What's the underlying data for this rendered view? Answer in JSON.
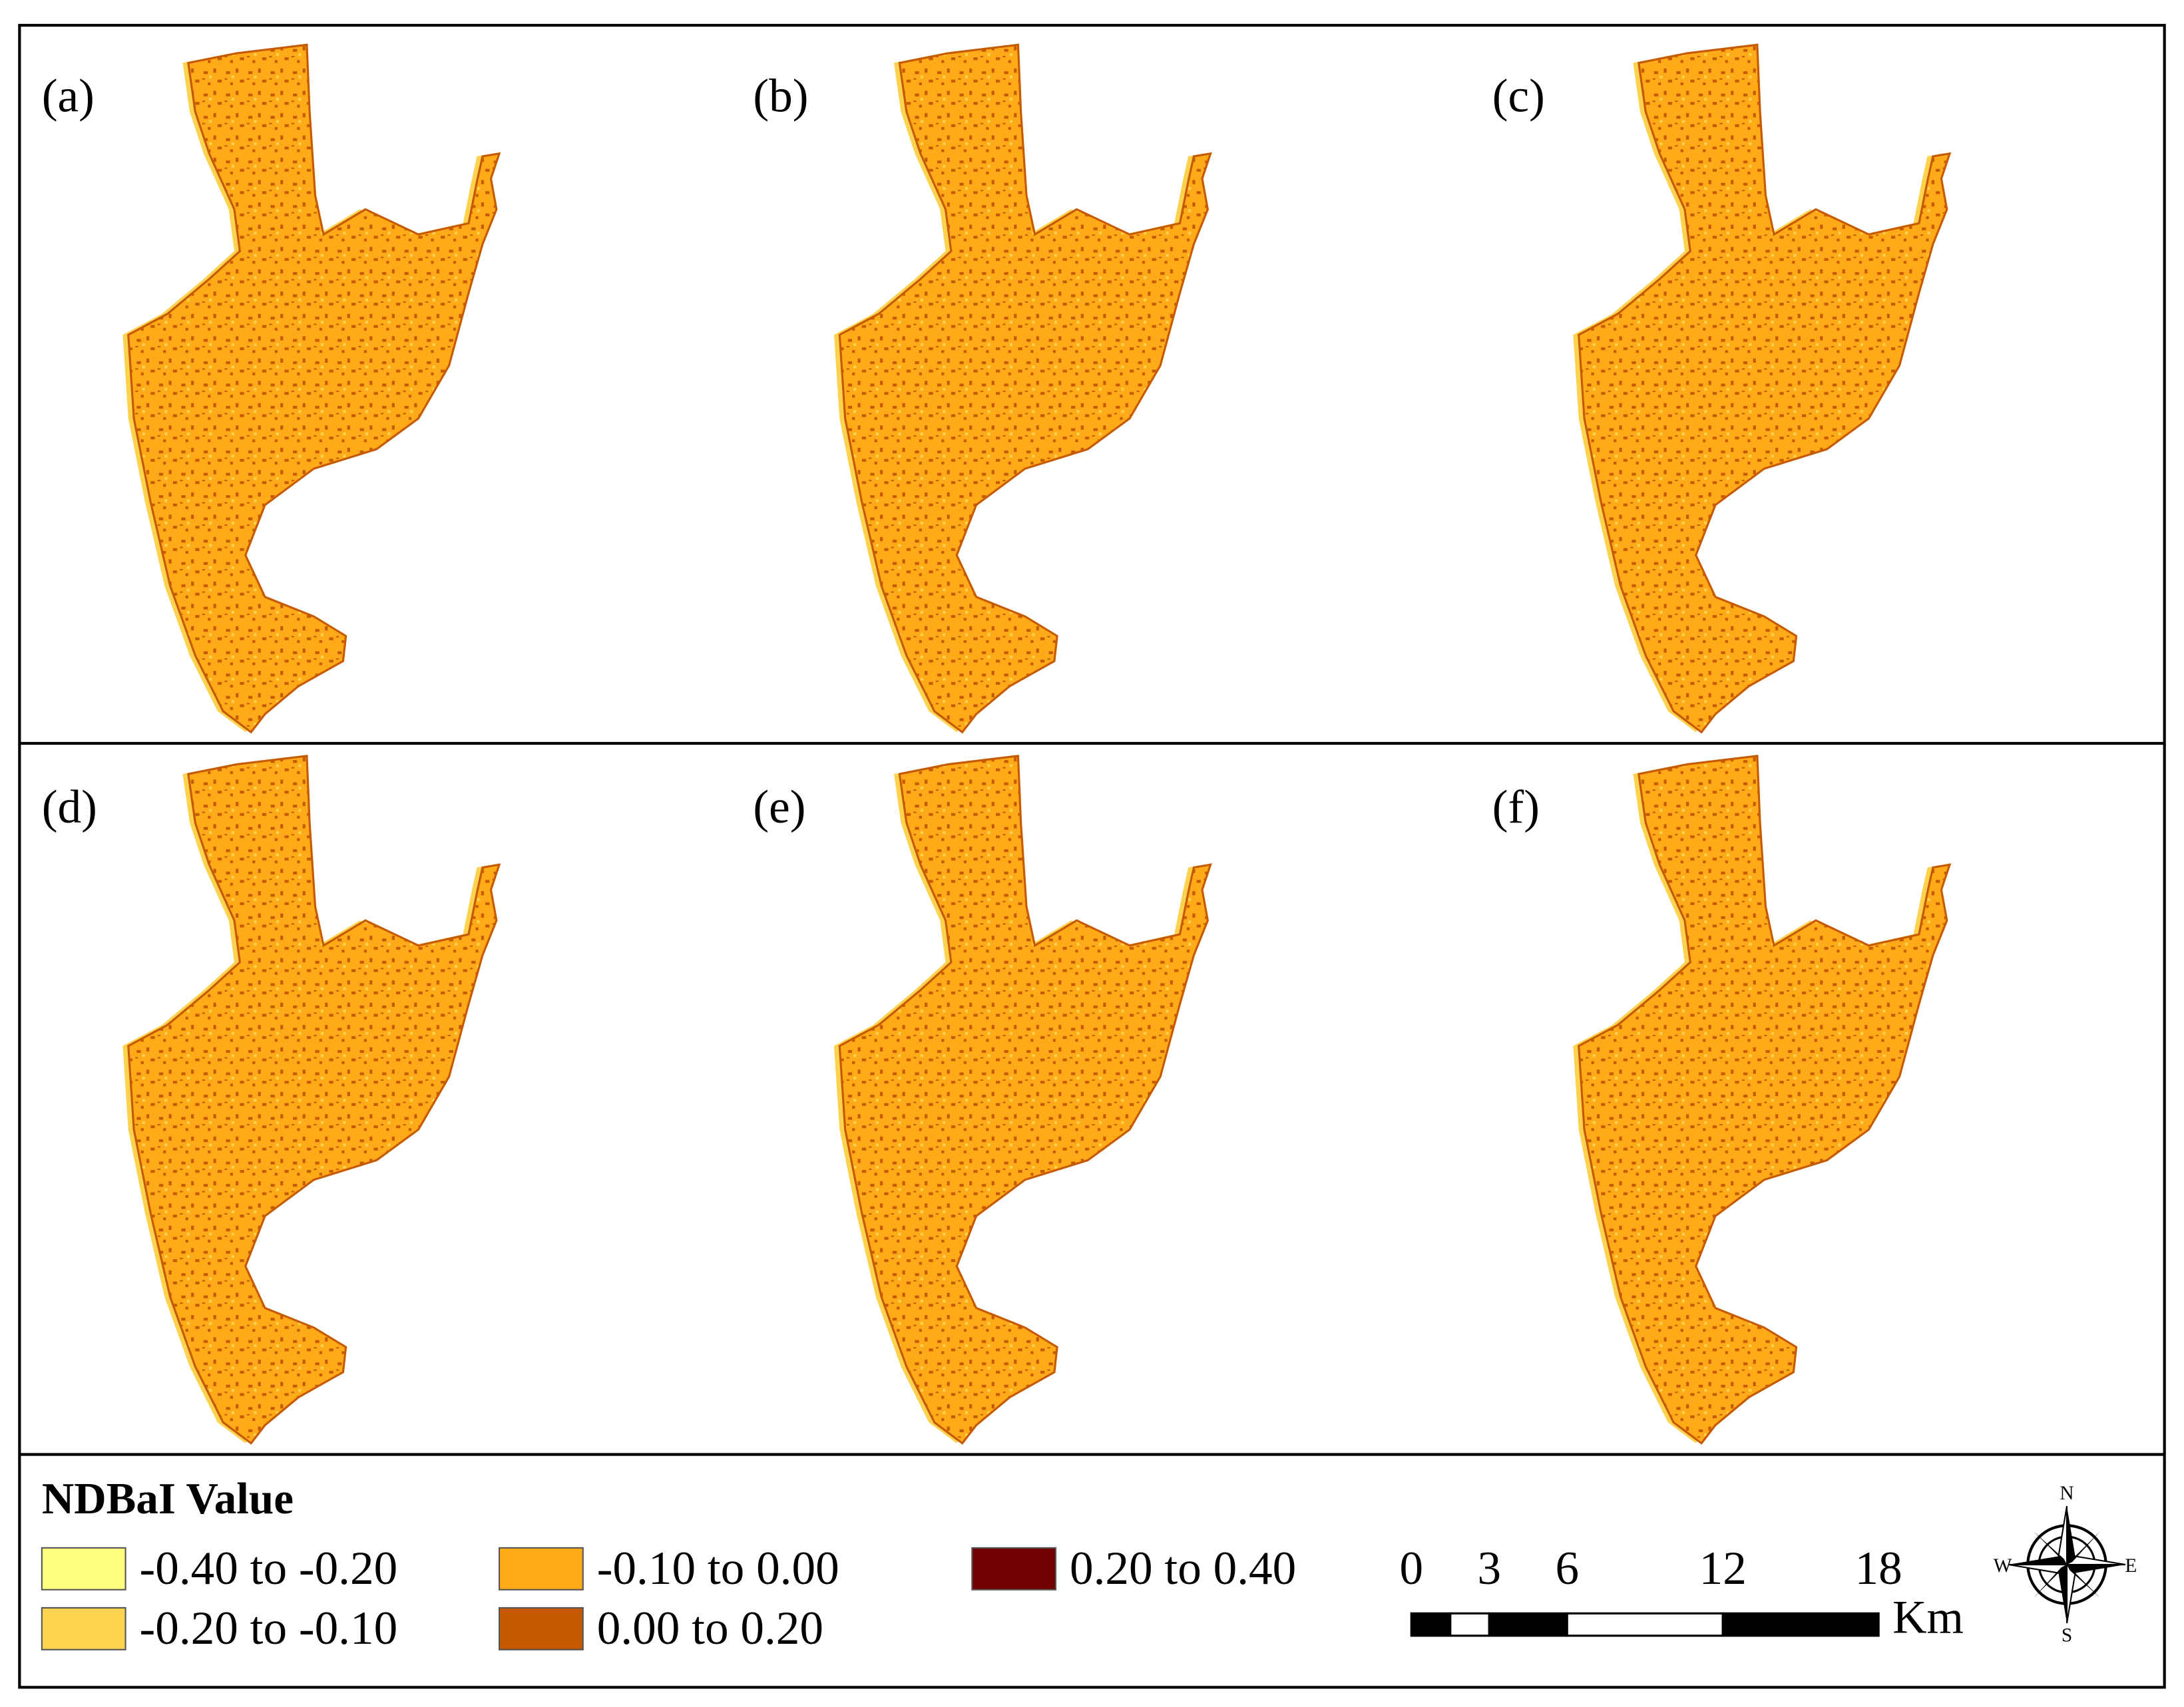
{
  "panels": [
    {
      "label": "(a)"
    },
    {
      "label": "(b)"
    },
    {
      "label": "(c)"
    },
    {
      "label": "(d)"
    },
    {
      "label": "(e)"
    },
    {
      "label": "(f)"
    }
  ],
  "legend": {
    "title": "NDBaI Value",
    "items": [
      {
        "label": "-0.40 to -0.20",
        "color": "#ffff80"
      },
      {
        "label": "-0.20 to -0.10",
        "color": "#fdd24f"
      },
      {
        "label": "-0.10 to 0.00",
        "color": "#ffaa19"
      },
      {
        "label": "0.00 to 0.20",
        "color": "#c65a00"
      },
      {
        "label": "0.20 to 0.40",
        "color": "#730000"
      }
    ]
  },
  "scale_bar": {
    "ticks": [
      0,
      3,
      6,
      12,
      18
    ],
    "unit": "Km"
  },
  "compass": {
    "n": "N",
    "s": "S",
    "e": "E",
    "w": "W"
  }
}
